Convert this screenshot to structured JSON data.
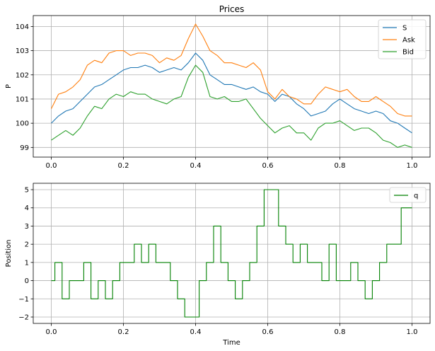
{
  "colors": {
    "S": "#1f77b4",
    "Ask": "#ff7f0e",
    "Bid": "#2ca02c",
    "q": "#008000"
  },
  "chart_data": [
    {
      "type": "line",
      "title": "Prices",
      "xlabel": "",
      "ylabel": "P",
      "xlim": [
        -0.05,
        1.05
      ],
      "ylim": [
        98.6,
        104.45
      ],
      "xticks": [
        0.0,
        0.2,
        0.4,
        0.6,
        0.8,
        1.0
      ],
      "xtick_labels": [
        "0.0",
        "0.2",
        "0.4",
        "0.6",
        "0.8",
        "1.0"
      ],
      "yticks": [
        99,
        100,
        101,
        102,
        103,
        104
      ],
      "ytick_labels": [
        "99",
        "100",
        "101",
        "102",
        "103",
        "104"
      ],
      "grid": true,
      "legend_position": "top-right",
      "x": [
        0.0,
        0.02,
        0.04,
        0.06,
        0.08,
        0.1,
        0.12,
        0.14,
        0.16,
        0.18,
        0.2,
        0.22,
        0.24,
        0.26,
        0.28,
        0.3,
        0.32,
        0.34,
        0.36,
        0.38,
        0.4,
        0.42,
        0.44,
        0.46,
        0.48,
        0.5,
        0.52,
        0.54,
        0.56,
        0.58,
        0.6,
        0.62,
        0.64,
        0.66,
        0.68,
        0.7,
        0.72,
        0.74,
        0.76,
        0.78,
        0.8,
        0.82,
        0.84,
        0.86,
        0.88,
        0.9,
        0.92,
        0.94,
        0.96,
        0.98,
        1.0
      ],
      "series": [
        {
          "name": "S",
          "color_key": "S",
          "values": [
            100.0,
            100.3,
            100.5,
            100.6,
            100.9,
            101.2,
            101.5,
            101.6,
            101.8,
            102.0,
            102.2,
            102.3,
            102.3,
            102.4,
            102.3,
            102.1,
            102.2,
            102.3,
            102.2,
            102.5,
            102.9,
            102.6,
            102.0,
            101.8,
            101.6,
            101.6,
            101.5,
            101.4,
            101.5,
            101.3,
            101.2,
            100.9,
            101.2,
            101.1,
            100.8,
            100.6,
            100.3,
            100.4,
            100.5,
            100.8,
            101.0,
            100.8,
            100.6,
            100.5,
            100.4,
            100.5,
            100.4,
            100.1,
            100.0,
            99.8,
            99.6
          ]
        },
        {
          "name": "Ask",
          "color_key": "Ask",
          "values": [
            100.6,
            101.2,
            101.3,
            101.5,
            101.8,
            102.4,
            102.6,
            102.5,
            102.9,
            103.0,
            103.0,
            102.8,
            102.9,
            102.9,
            102.8,
            102.5,
            102.7,
            102.6,
            102.8,
            103.5,
            104.1,
            103.6,
            103.0,
            102.8,
            102.5,
            102.5,
            102.4,
            102.3,
            102.5,
            102.2,
            101.3,
            101.0,
            101.4,
            101.1,
            101.0,
            100.8,
            100.8,
            101.2,
            101.5,
            101.4,
            101.3,
            101.4,
            101.1,
            100.9,
            100.9,
            101.1,
            100.9,
            100.7,
            100.4,
            100.3,
            100.3
          ]
        },
        {
          "name": "Bid",
          "color_key": "Bid",
          "values": [
            99.3,
            99.5,
            99.7,
            99.5,
            99.8,
            100.3,
            100.7,
            100.6,
            101.0,
            101.2,
            101.1,
            101.3,
            101.2,
            101.2,
            101.0,
            100.9,
            100.8,
            101.0,
            101.1,
            101.9,
            102.4,
            102.1,
            101.1,
            101.0,
            101.1,
            100.9,
            100.9,
            101.0,
            100.6,
            100.2,
            99.9,
            99.6,
            99.8,
            99.9,
            99.6,
            99.6,
            99.3,
            99.8,
            100.0,
            100.0,
            100.1,
            99.9,
            99.7,
            99.8,
            99.8,
            99.6,
            99.3,
            99.2,
            99.0,
            99.1,
            99.0
          ]
        }
      ]
    },
    {
      "type": "line",
      "title": "",
      "xlabel": "Time",
      "ylabel": "Position",
      "xlim": [
        -0.05,
        1.05
      ],
      "ylim": [
        -2.35,
        5.35
      ],
      "xticks": [
        0.0,
        0.2,
        0.4,
        0.6,
        0.8,
        1.0
      ],
      "xtick_labels": [
        "0.0",
        "0.2",
        "0.4",
        "0.6",
        "0.8",
        "1.0"
      ],
      "yticks": [
        -2,
        -1,
        0,
        1,
        2,
        3,
        4,
        5
      ],
      "ytick_labels": [
        "−2",
        "−1",
        "0",
        "1",
        "2",
        "3",
        "4",
        "5"
      ],
      "grid": true,
      "legend_position": "top-right",
      "x": [
        0.0,
        0.02,
        0.04,
        0.06,
        0.08,
        0.1,
        0.12,
        0.14,
        0.16,
        0.18,
        0.2,
        0.22,
        0.24,
        0.26,
        0.28,
        0.3,
        0.32,
        0.34,
        0.36,
        0.38,
        0.4,
        0.42,
        0.44,
        0.46,
        0.48,
        0.5,
        0.52,
        0.54,
        0.56,
        0.58,
        0.6,
        0.62,
        0.64,
        0.66,
        0.68,
        0.7,
        0.72,
        0.74,
        0.76,
        0.78,
        0.8,
        0.82,
        0.84,
        0.86,
        0.88,
        0.9,
        0.92,
        0.94,
        0.96,
        0.98,
        1.0
      ],
      "series": [
        {
          "name": "q",
          "color_key": "q",
          "values": [
            0,
            1,
            -1,
            0,
            0,
            1,
            -1,
            0,
            -1,
            0,
            1,
            1,
            2,
            1,
            2,
            1,
            1,
            0,
            -1,
            -2,
            -2,
            0,
            1,
            3,
            1,
            0,
            -1,
            0,
            1,
            3,
            5,
            5,
            3,
            2,
            1,
            2,
            1,
            1,
            0,
            2,
            0,
            0,
            1,
            0,
            -1,
            0,
            1,
            2,
            2,
            4,
            4
          ]
        }
      ]
    }
  ]
}
